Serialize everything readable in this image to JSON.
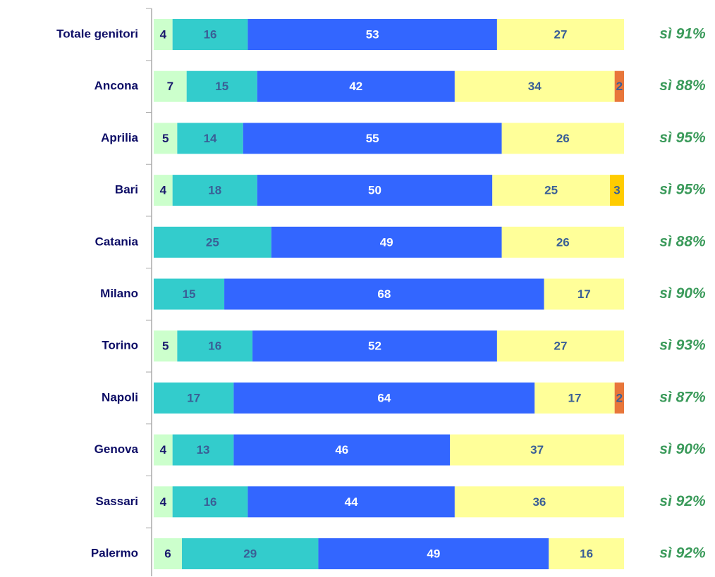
{
  "chart_data": {
    "type": "stacked-bar-horizontal",
    "categories": [
      "Totale genitori",
      "Ancona",
      "Aprilia",
      "Bari",
      "Catania",
      "Milano",
      "Torino",
      "Napoli",
      "Genova",
      "Sassari",
      "Palermo"
    ],
    "series": [
      {
        "color": "#ccffcc",
        "values": [
          4,
          7,
          5,
          4,
          null,
          null,
          5,
          null,
          4,
          4,
          6
        ]
      },
      {
        "color": "#33cccc",
        "values": [
          16,
          15,
          14,
          18,
          25,
          15,
          16,
          17,
          13,
          16,
          29
        ]
      },
      {
        "color": "#3366ff",
        "values": [
          53,
          42,
          55,
          50,
          49,
          68,
          52,
          64,
          46,
          44,
          49
        ]
      },
      {
        "color": "#ffff99",
        "values": [
          27,
          34,
          26,
          25,
          26,
          17,
          27,
          17,
          37,
          36,
          16
        ]
      },
      {
        "color": "#e8763a",
        "values": [
          null,
          2,
          null,
          null,
          null,
          null,
          null,
          2,
          null,
          null,
          null
        ]
      },
      {
        "color": "#ffcc00",
        "values": [
          null,
          null,
          null,
          3,
          null,
          null,
          null,
          null,
          null,
          null,
          null
        ]
      }
    ],
    "annotations": [
      "sì 91%",
      "sì 88%",
      "sì 95%",
      "sì 95%",
      "sì 88%",
      "sì 90%",
      "sì 93%",
      "sì 87%",
      "sì 90%",
      "sì 92%",
      "sì 92%"
    ],
    "xlim": [
      0,
      100
    ]
  }
}
